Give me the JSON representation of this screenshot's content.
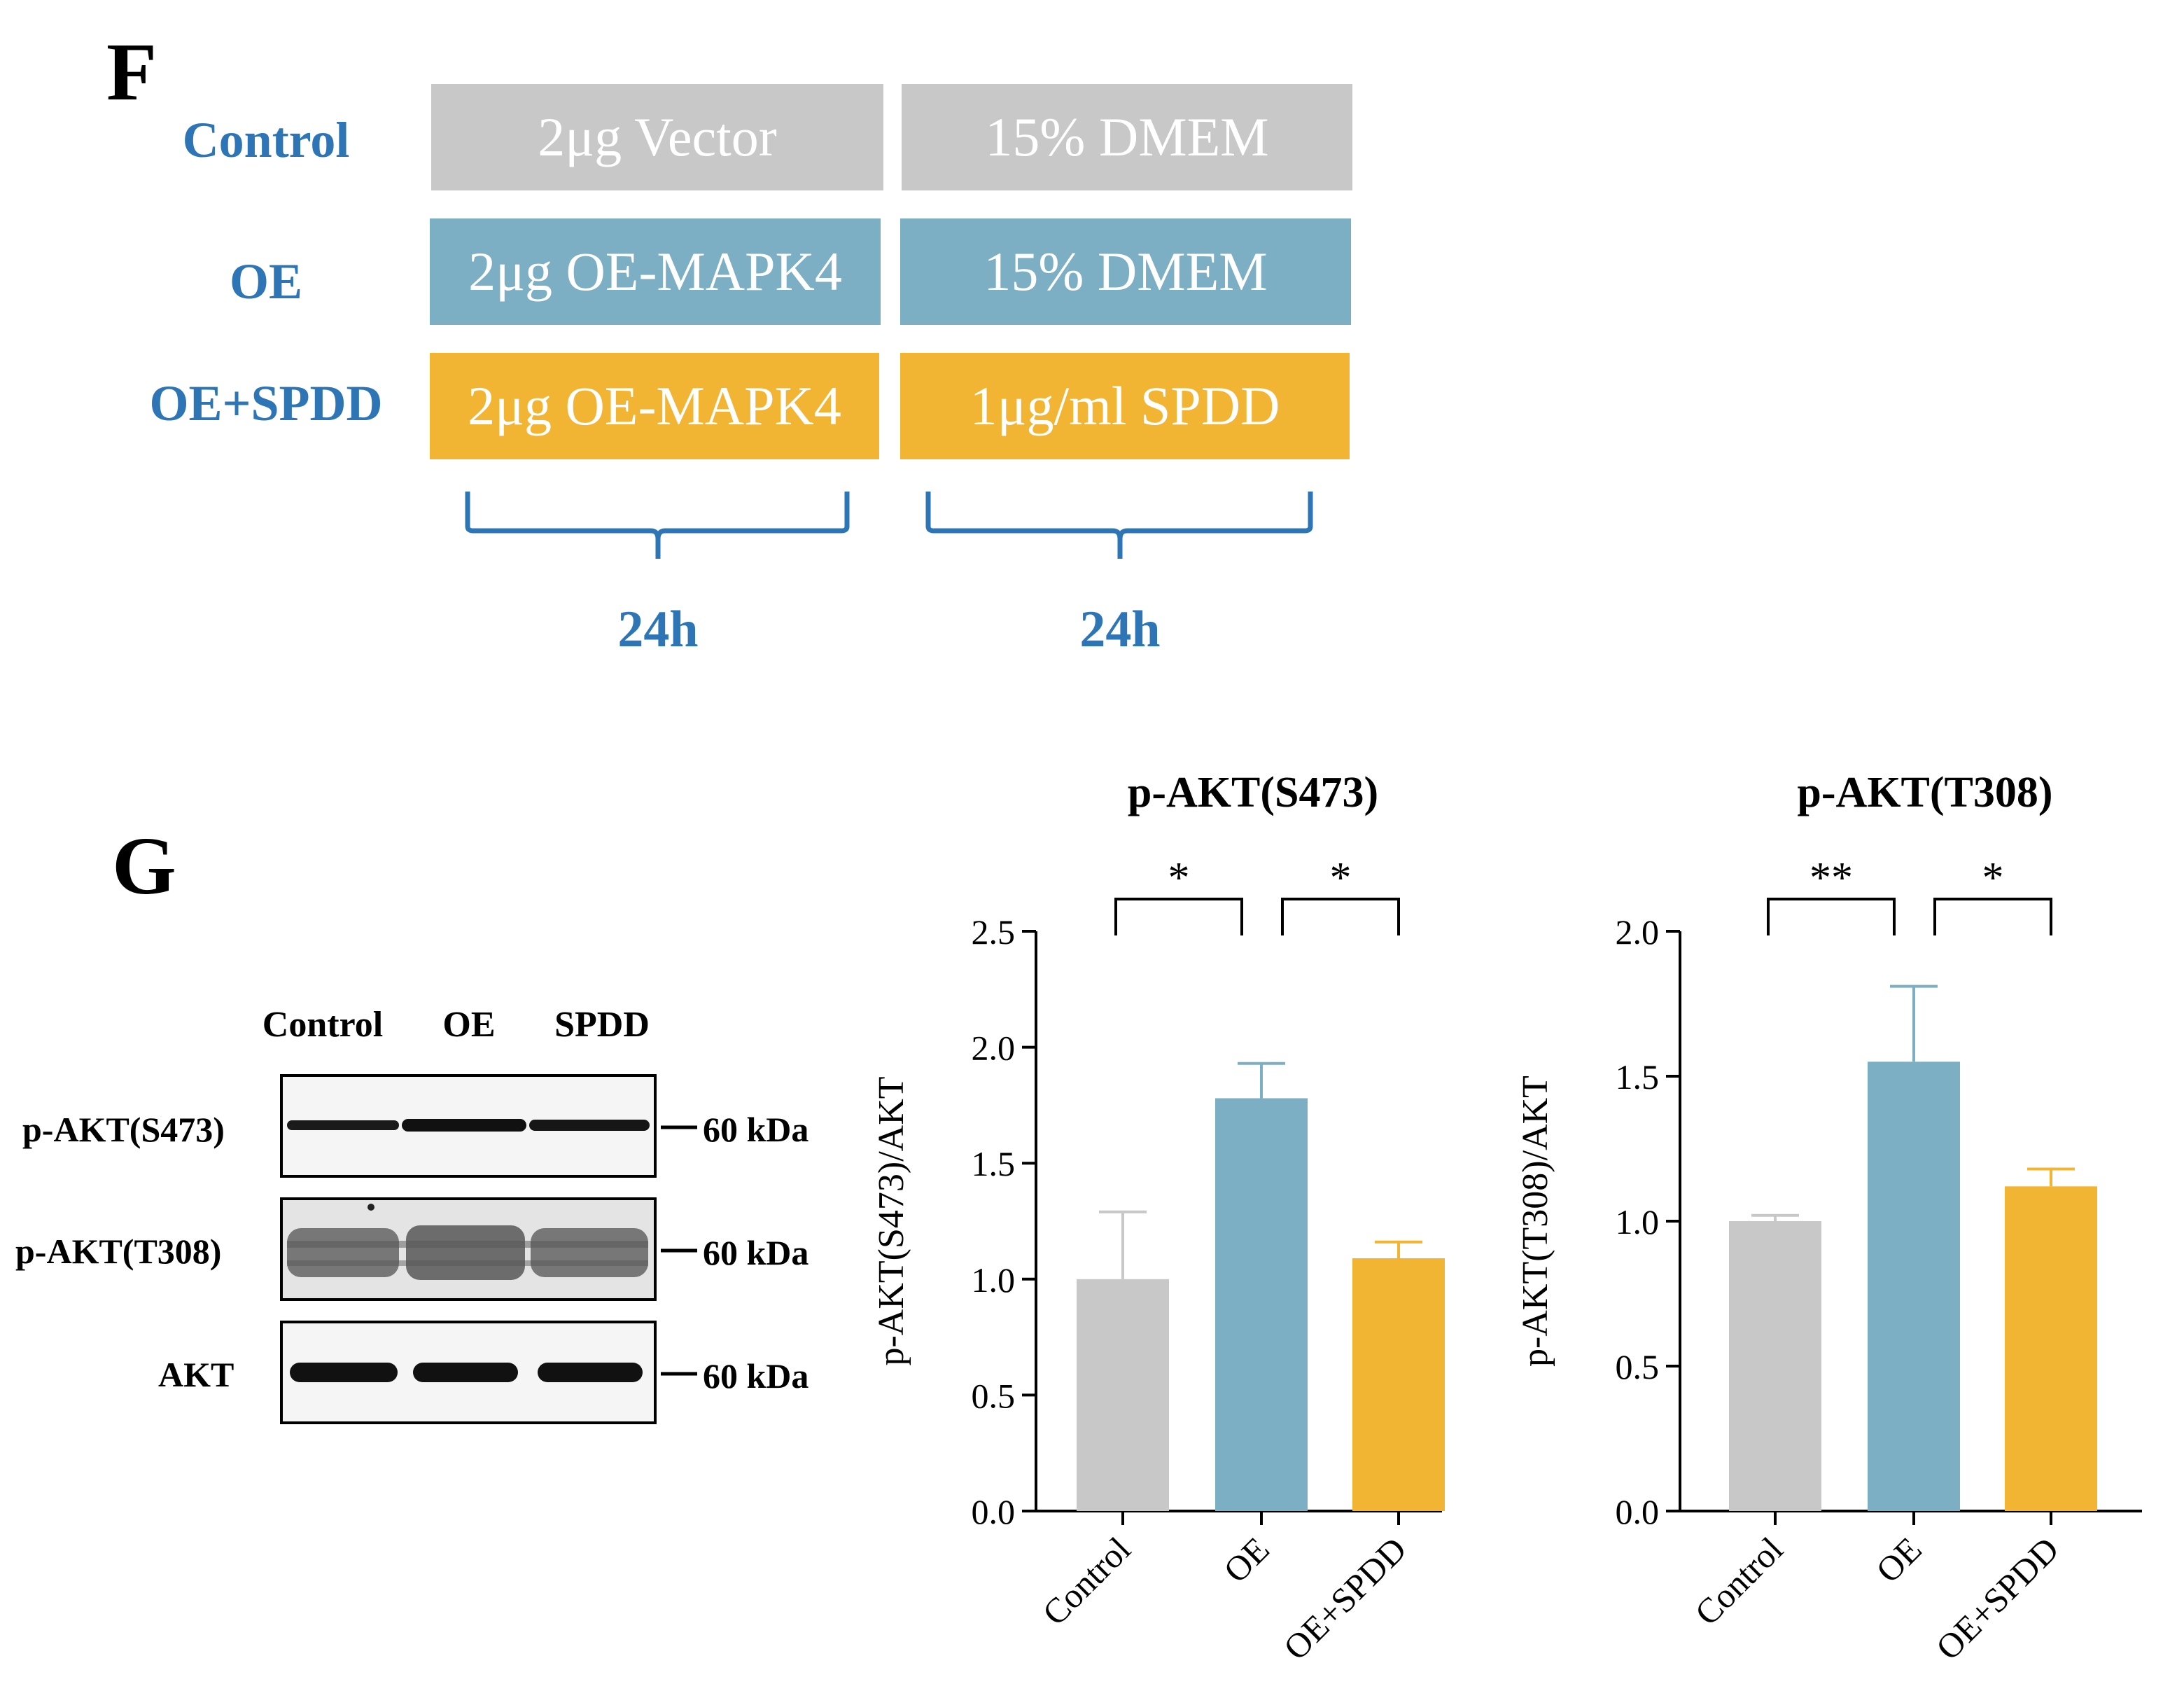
{
  "panelF": {
    "letter": "F",
    "rows": [
      {
        "label": "Control",
        "step1": "2μg Vector",
        "step2": "15% DMEM",
        "color": "#c8c8c8"
      },
      {
        "label": "OE",
        "step1": "2μg OE-MAPK4",
        "step2": "15% DMEM",
        "color": "#7dafc4"
      },
      {
        "label": "OE+SPDD",
        "step1": "2μg OE-MAPK4",
        "step2": "1μg/ml SPDD",
        "color": "#f2b433"
      }
    ],
    "durations": [
      "24h",
      "24h"
    ],
    "label_color": "#2e75b6"
  },
  "panelG": {
    "letter": "G",
    "blot": {
      "columns": [
        "Control",
        "OE",
        "SPDD"
      ],
      "rows": [
        {
          "label": "p-AKT(S473)",
          "kda": "60 kDa"
        },
        {
          "label": "p-AKT(T308)",
          "kda": "60 kDa"
        },
        {
          "label": "AKT",
          "kda": "60 kDa"
        }
      ]
    }
  },
  "chart_data": [
    {
      "type": "bar",
      "title": "p-AKT(S473)",
      "ylabel": "p-AKT(S473)/AKT",
      "xlabel": "",
      "categories": [
        "Control",
        "OE",
        "OE+SPDD"
      ],
      "values": [
        1.0,
        1.78,
        1.09
      ],
      "errors": [
        0.29,
        0.15,
        0.07
      ],
      "colors": [
        "#c8c8c8",
        "#7dafc4",
        "#f2b433"
      ],
      "ylim": [
        0,
        2.5
      ],
      "yticks": [
        "0.0",
        "0.5",
        "1.0",
        "1.5",
        "2.0",
        "2.5"
      ],
      "significance": [
        {
          "from": 0,
          "to": 1,
          "label": "*"
        },
        {
          "from": 1,
          "to": 2,
          "label": "*"
        }
      ]
    },
    {
      "type": "bar",
      "title": "p-AKT(T308)",
      "ylabel": "p-AKT(T308)/AKT",
      "xlabel": "",
      "categories": [
        "Control",
        "OE",
        "OE+SPDD"
      ],
      "values": [
        1.0,
        1.55,
        1.12
      ],
      "errors": [
        0.02,
        0.26,
        0.06
      ],
      "colors": [
        "#c8c8c8",
        "#7dafc4",
        "#f2b433"
      ],
      "ylim": [
        0,
        2.0
      ],
      "yticks": [
        "0.0",
        "0.5",
        "1.0",
        "1.5",
        "2.0"
      ],
      "significance": [
        {
          "from": 0,
          "to": 1,
          "label": "**"
        },
        {
          "from": 1,
          "to": 2,
          "label": "*"
        }
      ]
    }
  ]
}
